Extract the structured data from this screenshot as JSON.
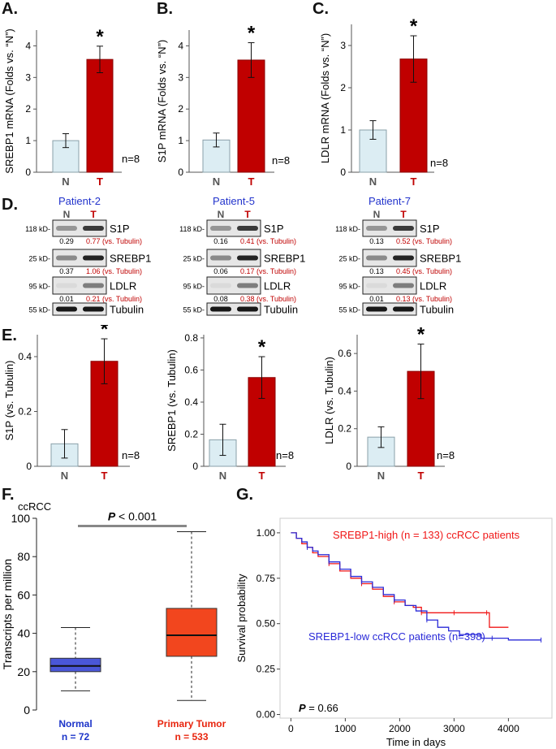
{
  "panels": {
    "A": "A.",
    "B": "B.",
    "C": "C.",
    "D": "D.",
    "E": "E.",
    "F": "F.",
    "G": "G."
  },
  "chart_data": [
    {
      "id": "A",
      "type": "bar",
      "categories": [
        "N",
        "T"
      ],
      "values": [
        1.0,
        3.57
      ],
      "errors": [
        0.22,
        0.42
      ],
      "ylabel": "SREBP1 mRNA (Folds vs. “N”)",
      "yticks": [
        "0",
        "1",
        "2",
        "3",
        "4"
      ],
      "ylim": [
        0,
        4.5
      ],
      "star": "*",
      "n_label": "n=8"
    },
    {
      "id": "B",
      "type": "bar",
      "categories": [
        "N",
        "T"
      ],
      "values": [
        1.02,
        3.55
      ],
      "errors": [
        0.22,
        0.55
      ],
      "ylabel": "S1P mRNA  (Folds vs. “N”)",
      "yticks": [
        "0",
        "1",
        "2",
        "3",
        "4"
      ],
      "ylim": [
        0,
        4.5
      ],
      "star": "*",
      "n_label": "n=8"
    },
    {
      "id": "C",
      "type": "bar",
      "categories": [
        "N",
        "T"
      ],
      "values": [
        1.0,
        2.68
      ],
      "errors": [
        0.22,
        0.55
      ],
      "ylabel": "LDLR mRNA (Folds vs. “N”)",
      "yticks": [
        "0",
        "1",
        "2",
        "3"
      ],
      "ylim": [
        0,
        3.5
      ],
      "star": "*",
      "n_label": "n=8"
    },
    {
      "id": "E1",
      "type": "bar",
      "categories": [
        "N",
        "T"
      ],
      "values": [
        0.082,
        0.383
      ],
      "errors": [
        0.052,
        0.082
      ],
      "ylabel": "S1P (vs. Tubulin)",
      "yticks": [
        "0",
        "0.2",
        "0.4"
      ],
      "ylim": [
        0,
        0.48
      ],
      "star": "*",
      "n_label": "n=8"
    },
    {
      "id": "E2",
      "type": "bar",
      "categories": [
        "N",
        "T"
      ],
      "values": [
        0.165,
        0.553
      ],
      "errors": [
        0.097,
        0.13
      ],
      "ylabel": "SREBP1 (vs. Tubulin)",
      "yticks": [
        "0",
        "0.2",
        "0.4",
        "0.6",
        "0.8"
      ],
      "ylim": [
        0,
        0.82
      ],
      "star": "*",
      "n_label": "n=8"
    },
    {
      "id": "E3",
      "type": "bar",
      "categories": [
        "N",
        "T"
      ],
      "values": [
        0.155,
        0.505
      ],
      "errors": [
        0.055,
        0.145
      ],
      "ylabel": "LDLR (vs. Tubulin)",
      "yticks": [
        "0",
        "0.2",
        "0.4",
        "0.6"
      ],
      "ylim": [
        0,
        0.7
      ],
      "star": "*",
      "n_label": "n=8"
    },
    {
      "id": "F",
      "type": "box",
      "title": "ccRCC",
      "ylabel": "Transcripts per million",
      "yticks": [
        "0",
        "20",
        "40",
        "60",
        "80",
        "100"
      ],
      "ylim": [
        0,
        100
      ],
      "boxes": [
        {
          "name": "Normal",
          "n": "n = 72",
          "min": 10,
          "q1": 20,
          "median": 23,
          "q3": 27,
          "max": 43,
          "color": "#4a57d8",
          "label_color": "#1c34c9"
        },
        {
          "name": "Primary Tumor",
          "n": "n = 533",
          "min": 5,
          "q1": 28,
          "median": 39,
          "q3": 53,
          "max": 93,
          "color": "#f2461e",
          "label_color": "#e8250e"
        }
      ],
      "pvalue_p": "P",
      "pvalue_rest": " < 0.001"
    },
    {
      "id": "G",
      "type": "line",
      "xlabel": "Time in days",
      "ylabel": "Survival probability",
      "xticks": [
        "0",
        "1000",
        "2000",
        "3000",
        "4000"
      ],
      "xlim": [
        -200,
        4800
      ],
      "yticks": [
        "0.00",
        "0.25",
        "0.50",
        "0.75",
        "1.00"
      ],
      "ylim": [
        -0.02,
        1.08
      ],
      "series": [
        {
          "name": "SREBP1-high (n = 133) ccRCC patients",
          "color": "#f01818",
          "x": [
            0,
            100,
            200,
            300,
            400,
            500,
            700,
            900,
            1100,
            1300,
            1500,
            1700,
            1900,
            2100,
            2250,
            2400,
            2600,
            2800,
            3000,
            3200,
            3400,
            3600,
            3650,
            4000
          ],
          "y": [
            1.0,
            0.97,
            0.94,
            0.92,
            0.89,
            0.87,
            0.83,
            0.79,
            0.75,
            0.72,
            0.69,
            0.65,
            0.62,
            0.6,
            0.59,
            0.56,
            0.56,
            0.56,
            0.56,
            0.56,
            0.56,
            0.56,
            0.48,
            0.48
          ]
        },
        {
          "name": "SREBP1-low ccRCC patients (n=398)",
          "color": "#2a2ad8",
          "x": [
            0,
            100,
            200,
            300,
            400,
            500,
            700,
            900,
            1100,
            1300,
            1500,
            1700,
            1900,
            2100,
            2300,
            2500,
            2700,
            2900,
            3100,
            3300,
            3500,
            3700,
            4000,
            4300,
            4600
          ],
          "y": [
            1.0,
            0.97,
            0.95,
            0.92,
            0.9,
            0.88,
            0.84,
            0.8,
            0.76,
            0.73,
            0.7,
            0.66,
            0.63,
            0.6,
            0.57,
            0.52,
            0.48,
            0.46,
            0.44,
            0.44,
            0.42,
            0.42,
            0.41,
            0.41,
            0.41
          ]
        }
      ],
      "pvalue_p": "P",
      "pvalue_rest": " = 0.66"
    }
  ],
  "blots": [
    {
      "id": "b1",
      "title": "Patient-2",
      "title_color": "#2233cc",
      "lanes": [
        "N",
        "T"
      ],
      "rows": [
        {
          "kd": "118 kD-",
          "label": "S1P",
          "v1": "0.29",
          "v2": "0.77 (vs. Tubulin)"
        },
        {
          "kd": "25 kD-",
          "label": "SREBP1",
          "v1": "0.37",
          "v2": "1.06 (vs. Tubulin)"
        },
        {
          "kd": "95 kD-",
          "label": "LDLR",
          "v1": "0.01",
          "v2": "0.21 (vs. Tubulin)"
        },
        {
          "kd": "55 kD-",
          "label": "Tubulin",
          "v1": "",
          "v2": ""
        }
      ]
    },
    {
      "id": "b2",
      "title": "Patient-5",
      "title_color": "#2233cc",
      "lanes": [
        "N",
        "T"
      ],
      "rows": [
        {
          "kd": "118 kD-",
          "label": "S1P",
          "v1": "0.16",
          "v2": "0.41 (vs. Tubulin)"
        },
        {
          "kd": "25 kD-",
          "label": "SREBP1",
          "v1": "0.06",
          "v2": "0.17 (vs. Tubulin)"
        },
        {
          "kd": "95 kD-",
          "label": "LDLR",
          "v1": "0.08",
          "v2": "0.38 (vs. Tubulin)"
        },
        {
          "kd": "55 kD-",
          "label": "Tubulin",
          "v1": "",
          "v2": ""
        }
      ]
    },
    {
      "id": "b3",
      "title": "Patient-7",
      "title_color": "#2233cc",
      "lanes": [
        "N",
        "T"
      ],
      "rows": [
        {
          "kd": "118 kD-",
          "label": "S1P",
          "v1": "0.13",
          "v2": "0.52 (vs. Tubulin)"
        },
        {
          "kd": "25 kD-",
          "label": "SREBP1",
          "v1": "0.13",
          "v2": "0.45 (vs. Tubulin)"
        },
        {
          "kd": "95 kD-",
          "label": "LDLR",
          "v1": "0.01",
          "v2": "0.13 (vs. Tubulin)"
        },
        {
          "kd": "55 kD-",
          "label": "Tubulin",
          "v1": "",
          "v2": ""
        }
      ]
    }
  ],
  "colors": {
    "bar_N": "#dcedf3",
    "bar_T": "#c00000",
    "label_N": "#555555",
    "label_T": "#c00000",
    "ratio_red": "#c00000",
    "blot_bg": "#e6e6e6"
  }
}
